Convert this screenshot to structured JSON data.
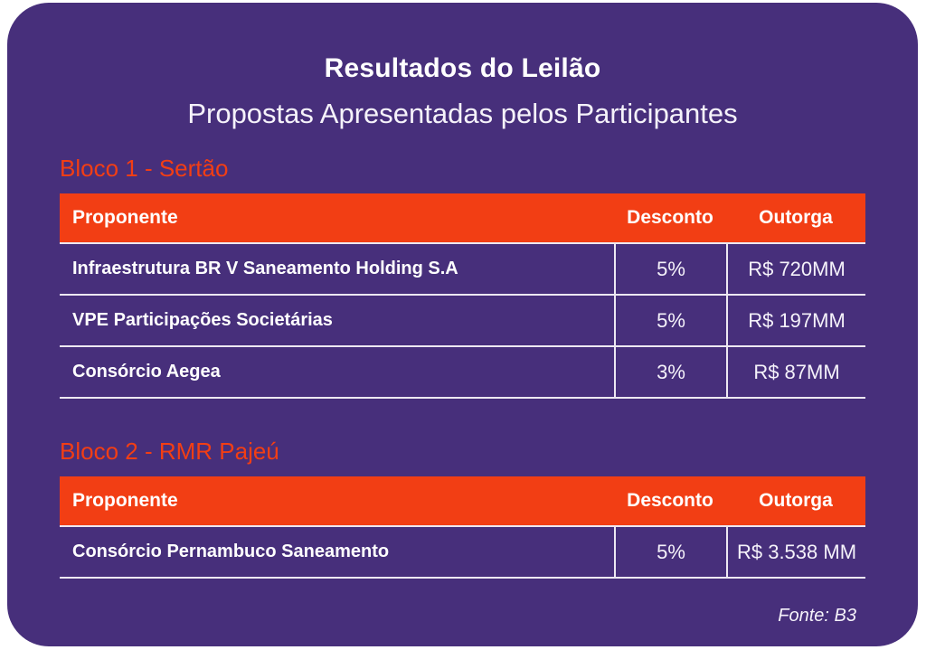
{
  "card": {
    "title": "Resultados do Leilão",
    "subtitle": "Propostas Apresentadas pelos Participantes",
    "footer": "Fonte: B3",
    "colors": {
      "card_bg": "#472F7B",
      "accent_orange": "#F23E14",
      "text_white": "#FFFFFF",
      "divider_line": "#EDE8F2",
      "page_bg": "#FFFFFF"
    }
  },
  "sections": [
    {
      "heading": "Bloco 1 - Sertão",
      "columns": [
        "Proponente",
        "Desconto",
        "Outorga"
      ],
      "rows": [
        [
          "Infraestrutura BR V Saneamento Holding S.A",
          "5%",
          "R$ 720MM"
        ],
        [
          "VPE Participações Societárias",
          "5%",
          "R$ 197MM"
        ],
        [
          "Consórcio Aegea",
          "3%",
          "R$ 87MM"
        ]
      ]
    },
    {
      "heading": "Bloco 2 - RMR Pajeú",
      "columns": [
        "Proponente",
        "Desconto",
        "Outorga"
      ],
      "rows": [
        [
          "Consórcio Pernambuco Saneamento",
          "5%",
          "R$ 3.538 MM"
        ]
      ]
    }
  ],
  "chart_data": [
    {
      "type": "table",
      "title": "Resultados do Leilão - Propostas Apresentadas pelos Participantes - Bloco 1 - Sertão",
      "columns": [
        "Proponente",
        "Desconto",
        "Outorga"
      ],
      "rows": [
        [
          "Infraestrutura BR V Saneamento Holding S.A",
          "5%",
          "R$ 720MM"
        ],
        [
          "VPE Participações Societárias",
          "5%",
          "R$ 197MM"
        ],
        [
          "Consórcio Aegea",
          "3%",
          "R$ 87MM"
        ]
      ],
      "source": "Fonte: B3"
    },
    {
      "type": "table",
      "title": "Resultados do Leilão - Propostas Apresentadas pelos Participantes - Bloco 2 - RMR Pajeú",
      "columns": [
        "Proponente",
        "Desconto",
        "Outorga"
      ],
      "rows": [
        [
          "Consórcio Pernambuco Saneamento",
          "5%",
          "R$ 3.538 MM"
        ]
      ],
      "source": "Fonte: B3"
    }
  ]
}
